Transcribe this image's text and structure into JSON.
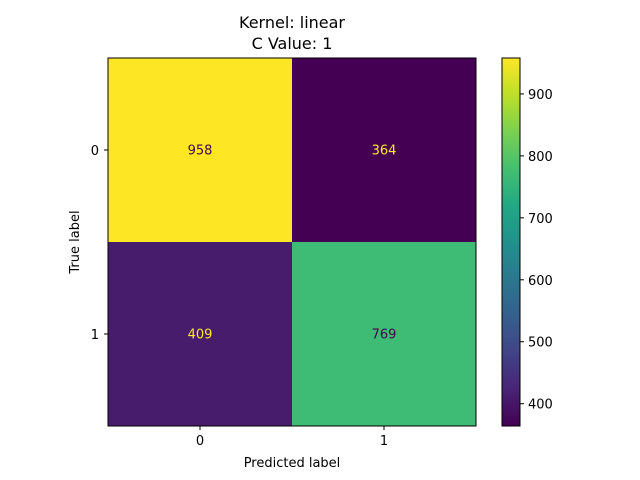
{
  "chart_data": {
    "type": "heatmap",
    "title_lines": [
      "Kernel: linear",
      "C Value: 1"
    ],
    "xlabel": "Predicted label",
    "ylabel": "True label",
    "x_categories": [
      "0",
      "1"
    ],
    "y_categories": [
      "0",
      "1"
    ],
    "values": [
      [
        958,
        364
      ],
      [
        409,
        769
      ]
    ],
    "colorbar": {
      "min": 364,
      "max": 958,
      "ticks": [
        400,
        500,
        600,
        700,
        800,
        900
      ],
      "colormap": "viridis"
    }
  }
}
